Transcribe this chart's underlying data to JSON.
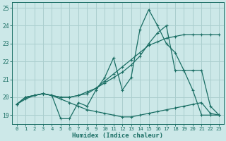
{
  "xlabel": "Humidex (Indice chaleur)",
  "xlim": [
    -0.5,
    23.5
  ],
  "ylim": [
    18.5,
    25.3
  ],
  "yticks": [
    19,
    20,
    21,
    22,
    23,
    24,
    25
  ],
  "xticks": [
    0,
    1,
    2,
    3,
    4,
    5,
    6,
    7,
    8,
    9,
    10,
    11,
    12,
    13,
    14,
    15,
    16,
    17,
    18,
    19,
    20,
    21,
    22,
    23
  ],
  "bg_color": "#cce8e8",
  "grid_color": "#aacece",
  "line_color": "#1a6e64",
  "lines": [
    {
      "x": [
        0,
        1,
        2,
        3,
        4,
        5,
        6,
        7,
        8,
        9,
        10,
        11,
        12,
        13,
        14,
        15,
        16,
        17,
        18,
        19,
        20,
        21,
        22,
        23
      ],
      "y": [
        19.6,
        20.0,
        20.1,
        20.2,
        20.1,
        18.8,
        18.8,
        19.7,
        19.5,
        20.4,
        21.1,
        22.2,
        20.4,
        21.1,
        23.8,
        24.9,
        24.0,
        23.0,
        22.5,
        21.5,
        20.4,
        19.0,
        19.0,
        19.0
      ]
    },
    {
      "x": [
        0,
        1,
        2,
        3,
        4,
        5,
        6,
        7,
        8,
        9,
        10,
        11,
        12,
        13,
        14,
        15,
        16,
        17,
        18,
        19,
        20,
        21,
        22,
        23
      ],
      "y": [
        19.6,
        20.0,
        20.1,
        20.2,
        20.1,
        20.0,
        20.0,
        20.1,
        20.2,
        20.5,
        20.9,
        21.3,
        21.7,
        22.1,
        22.5,
        22.9,
        23.1,
        23.3,
        23.4,
        23.5,
        23.5,
        23.5,
        23.5,
        23.5
      ]
    },
    {
      "x": [
        0,
        1,
        2,
        3,
        4,
        5,
        6,
        7,
        8,
        9,
        10,
        11,
        12,
        13,
        14,
        15,
        16,
        17,
        18,
        19,
        20,
        21,
        22,
        23
      ],
      "y": [
        19.6,
        20.0,
        20.1,
        20.2,
        20.1,
        20.0,
        20.0,
        20.1,
        20.3,
        20.5,
        20.8,
        21.1,
        21.4,
        21.8,
        22.3,
        23.0,
        23.6,
        24.0,
        21.5,
        21.5,
        21.5,
        21.5,
        19.5,
        19.0
      ]
    },
    {
      "x": [
        0,
        1,
        2,
        3,
        4,
        5,
        6,
        7,
        8,
        9,
        10,
        11,
        12,
        13,
        14,
        15,
        16,
        17,
        18,
        19,
        20,
        21,
        22,
        23
      ],
      "y": [
        19.6,
        19.9,
        20.1,
        20.2,
        20.1,
        19.9,
        19.7,
        19.5,
        19.3,
        19.2,
        19.1,
        19.0,
        18.9,
        18.9,
        19.0,
        19.1,
        19.2,
        19.3,
        19.4,
        19.5,
        19.6,
        19.7,
        19.1,
        19.0
      ]
    }
  ]
}
